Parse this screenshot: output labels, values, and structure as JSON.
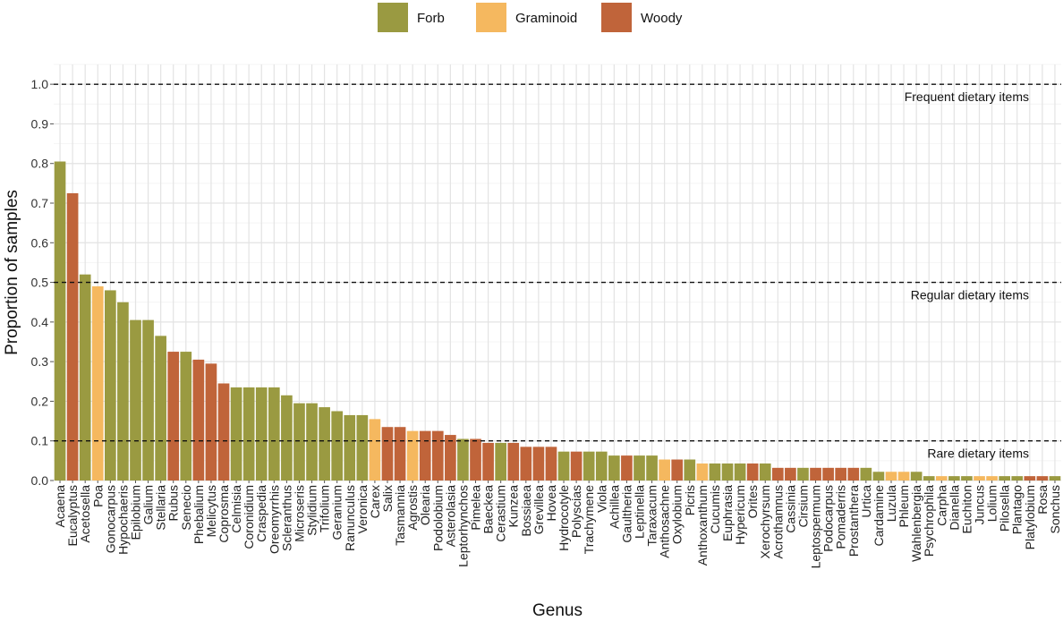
{
  "chart_data": {
    "type": "bar",
    "xlabel": "Genus",
    "ylabel": "Proportion of samples",
    "ylim": [
      0,
      1.05
    ],
    "yticks": [
      0.0,
      0.1,
      0.2,
      0.3,
      0.4,
      0.5,
      0.6,
      0.7,
      0.8,
      0.9,
      1.0
    ],
    "grid": true,
    "legend": {
      "placement": "top-center",
      "entries": [
        {
          "name": "Forb",
          "color": "#9a9a41"
        },
        {
          "name": "Graminoid",
          "color": "#f5b85f"
        },
        {
          "name": "Woody",
          "color": "#c0643a"
        }
      ]
    },
    "reference_lines": [
      {
        "y": 1.0,
        "label": "Frequent dietary items",
        "style": "dashed"
      },
      {
        "y": 0.5,
        "label": "Regular dietary items",
        "style": "dashed"
      },
      {
        "y": 0.1,
        "label": "Rare dietary items",
        "style": "dashed"
      }
    ],
    "bars": [
      {
        "genus": "Acaena",
        "value": 0.805,
        "group": "Forb"
      },
      {
        "genus": "Eucalyptus",
        "value": 0.725,
        "group": "Woody"
      },
      {
        "genus": "Acetosella",
        "value": 0.52,
        "group": "Forb"
      },
      {
        "genus": "Poa",
        "value": 0.49,
        "group": "Graminoid"
      },
      {
        "genus": "Gonocarpus",
        "value": 0.48,
        "group": "Forb"
      },
      {
        "genus": "Hypochaeris",
        "value": 0.45,
        "group": "Forb"
      },
      {
        "genus": "Epilobium",
        "value": 0.405,
        "group": "Forb"
      },
      {
        "genus": "Galium",
        "value": 0.405,
        "group": "Forb"
      },
      {
        "genus": "Stellaria",
        "value": 0.365,
        "group": "Forb"
      },
      {
        "genus": "Rubus",
        "value": 0.325,
        "group": "Woody"
      },
      {
        "genus": "Senecio",
        "value": 0.325,
        "group": "Forb"
      },
      {
        "genus": "Phebalium",
        "value": 0.305,
        "group": "Woody"
      },
      {
        "genus": "Melicytus",
        "value": 0.295,
        "group": "Woody"
      },
      {
        "genus": "Coprosma",
        "value": 0.245,
        "group": "Woody"
      },
      {
        "genus": "Celmisia",
        "value": 0.235,
        "group": "Forb"
      },
      {
        "genus": "Coronidium",
        "value": 0.235,
        "group": "Forb"
      },
      {
        "genus": "Craspedia",
        "value": 0.235,
        "group": "Forb"
      },
      {
        "genus": "Oreomyrrhis",
        "value": 0.235,
        "group": "Forb"
      },
      {
        "genus": "Scleranthus",
        "value": 0.215,
        "group": "Forb"
      },
      {
        "genus": "Microseris",
        "value": 0.195,
        "group": "Forb"
      },
      {
        "genus": "Stylidium",
        "value": 0.195,
        "group": "Forb"
      },
      {
        "genus": "Trifolium",
        "value": 0.185,
        "group": "Forb"
      },
      {
        "genus": "Geranium",
        "value": 0.175,
        "group": "Forb"
      },
      {
        "genus": "Ranunculus",
        "value": 0.165,
        "group": "Forb"
      },
      {
        "genus": "Veronica",
        "value": 0.165,
        "group": "Forb"
      },
      {
        "genus": "Carex",
        "value": 0.155,
        "group": "Graminoid"
      },
      {
        "genus": "Salix",
        "value": 0.135,
        "group": "Woody"
      },
      {
        "genus": "Tasmannia",
        "value": 0.135,
        "group": "Woody"
      },
      {
        "genus": "Agrostis",
        "value": 0.125,
        "group": "Graminoid"
      },
      {
        "genus": "Olearia",
        "value": 0.125,
        "group": "Woody"
      },
      {
        "genus": "Podolobium",
        "value": 0.125,
        "group": "Woody"
      },
      {
        "genus": "Asterolasia",
        "value": 0.115,
        "group": "Woody"
      },
      {
        "genus": "Leptorhynchos",
        "value": 0.105,
        "group": "Forb"
      },
      {
        "genus": "Pimelea",
        "value": 0.105,
        "group": "Woody"
      },
      {
        "genus": "Baeckea",
        "value": 0.095,
        "group": "Woody"
      },
      {
        "genus": "Cerastium",
        "value": 0.095,
        "group": "Forb"
      },
      {
        "genus": "Kunzea",
        "value": 0.095,
        "group": "Woody"
      },
      {
        "genus": "Bossiaea",
        "value": 0.085,
        "group": "Woody"
      },
      {
        "genus": "Grevillea",
        "value": 0.085,
        "group": "Woody"
      },
      {
        "genus": "Hovea",
        "value": 0.085,
        "group": "Woody"
      },
      {
        "genus": "Hydrocotyle",
        "value": 0.073,
        "group": "Forb"
      },
      {
        "genus": "Polyscias",
        "value": 0.073,
        "group": "Woody"
      },
      {
        "genus": "Trachymene",
        "value": 0.073,
        "group": "Forb"
      },
      {
        "genus": "Viola",
        "value": 0.073,
        "group": "Forb"
      },
      {
        "genus": "Achillea",
        "value": 0.063,
        "group": "Forb"
      },
      {
        "genus": "Gaultheria",
        "value": 0.063,
        "group": "Woody"
      },
      {
        "genus": "Leptinella",
        "value": 0.063,
        "group": "Forb"
      },
      {
        "genus": "Taraxacum",
        "value": 0.063,
        "group": "Forb"
      },
      {
        "genus": "Anthosachne",
        "value": 0.053,
        "group": "Graminoid"
      },
      {
        "genus": "Oxylobium",
        "value": 0.053,
        "group": "Woody"
      },
      {
        "genus": "Picris",
        "value": 0.053,
        "group": "Forb"
      },
      {
        "genus": "Anthoxanthum",
        "value": 0.043,
        "group": "Graminoid"
      },
      {
        "genus": "Cucumis",
        "value": 0.043,
        "group": "Forb"
      },
      {
        "genus": "Euphrasia",
        "value": 0.043,
        "group": "Forb"
      },
      {
        "genus": "Hypericum",
        "value": 0.043,
        "group": "Forb"
      },
      {
        "genus": "Orites",
        "value": 0.043,
        "group": "Woody"
      },
      {
        "genus": "Xerochyrsum",
        "value": 0.043,
        "group": "Forb"
      },
      {
        "genus": "Acrothamnus",
        "value": 0.032,
        "group": "Woody"
      },
      {
        "genus": "Cassinia",
        "value": 0.032,
        "group": "Woody"
      },
      {
        "genus": "Cirsium",
        "value": 0.032,
        "group": "Forb"
      },
      {
        "genus": "Leptospermum",
        "value": 0.032,
        "group": "Woody"
      },
      {
        "genus": "Podocarpus",
        "value": 0.032,
        "group": "Woody"
      },
      {
        "genus": "Pomaderris",
        "value": 0.032,
        "group": "Woody"
      },
      {
        "genus": "Prostanthera",
        "value": 0.032,
        "group": "Woody"
      },
      {
        "genus": "Urtica",
        "value": 0.032,
        "group": "Forb"
      },
      {
        "genus": "Cardamine",
        "value": 0.022,
        "group": "Forb"
      },
      {
        "genus": "Luzula",
        "value": 0.022,
        "group": "Graminoid"
      },
      {
        "genus": "Phleum",
        "value": 0.022,
        "group": "Graminoid"
      },
      {
        "genus": "Wahlenbergia",
        "value": 0.022,
        "group": "Forb"
      },
      {
        "genus": "Psychrophila",
        "value": 0.011,
        "group": "Forb"
      },
      {
        "genus": "Carpha",
        "value": 0.011,
        "group": "Graminoid"
      },
      {
        "genus": "Dianella",
        "value": 0.011,
        "group": "Forb"
      },
      {
        "genus": "Euchiton",
        "value": 0.011,
        "group": "Forb"
      },
      {
        "genus": "Juncus",
        "value": 0.011,
        "group": "Graminoid"
      },
      {
        "genus": "Lolium",
        "value": 0.011,
        "group": "Graminoid"
      },
      {
        "genus": "Pilosella",
        "value": 0.011,
        "group": "Forb"
      },
      {
        "genus": "Plantago",
        "value": 0.011,
        "group": "Forb"
      },
      {
        "genus": "Platylobium",
        "value": 0.011,
        "group": "Woody"
      },
      {
        "genus": "Rosa",
        "value": 0.011,
        "group": "Woody"
      },
      {
        "genus": "Sonchus",
        "value": 0.011,
        "group": "Forb"
      }
    ]
  }
}
